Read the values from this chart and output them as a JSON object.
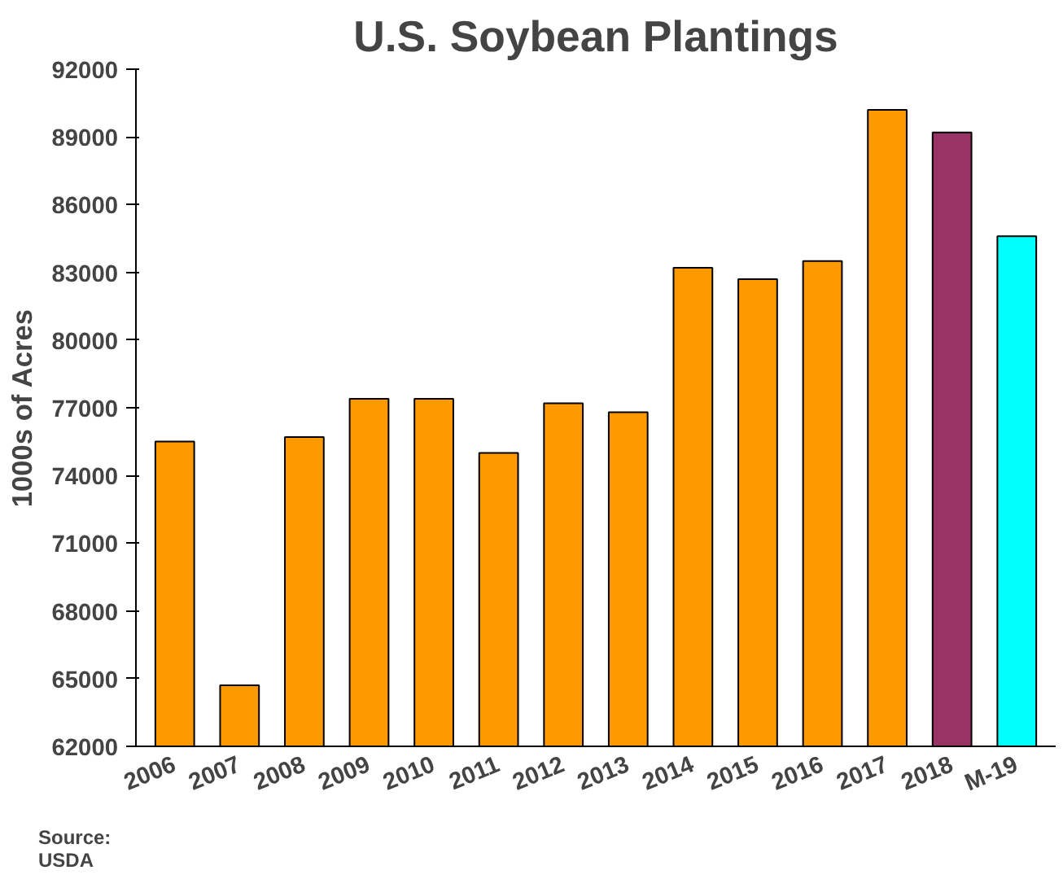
{
  "chart_data": {
    "type": "bar",
    "title": "U.S. Soybean Plantings",
    "ylabel": "1000s of Acres",
    "categories": [
      "2006",
      "2007",
      "2008",
      "2009",
      "2010",
      "2011",
      "2012",
      "2013",
      "2014",
      "2015",
      "2016",
      "2017",
      "2018",
      "M-19"
    ],
    "values": [
      75500,
      64700,
      75700,
      77400,
      77400,
      75000,
      77200,
      76800,
      83200,
      82700,
      83500,
      90200,
      89200,
      84600
    ],
    "colors": [
      "#ff9900",
      "#ff9900",
      "#ff9900",
      "#ff9900",
      "#ff9900",
      "#ff9900",
      "#ff9900",
      "#ff9900",
      "#ff9900",
      "#ff9900",
      "#ff9900",
      "#ff9900",
      "#993366",
      "#00ffff"
    ],
    "ylim": [
      62000,
      92000
    ],
    "yticks": [
      62000,
      65000,
      68000,
      71000,
      74000,
      77000,
      80000,
      83000,
      86000,
      89000,
      92000
    ],
    "grid": false,
    "annotations": [
      "Source:\nUSDA"
    ]
  }
}
